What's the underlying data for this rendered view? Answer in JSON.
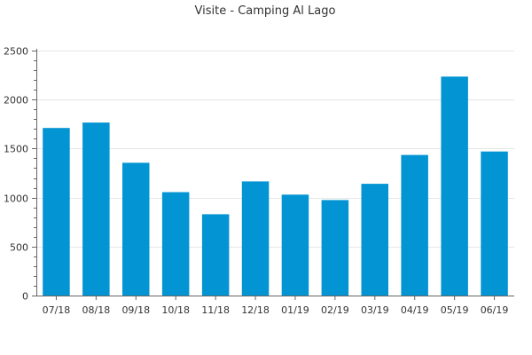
{
  "chart_data": {
    "type": "bar",
    "title": "Visite - Camping Al Lago",
    "xlabel": "",
    "ylabel": "",
    "categories": [
      "07/18",
      "08/18",
      "09/18",
      "10/18",
      "11/18",
      "12/18",
      "01/19",
      "02/19",
      "03/19",
      "04/19",
      "05/19",
      "06/19"
    ],
    "values": [
      1710,
      1765,
      1355,
      1055,
      830,
      1165,
      1030,
      975,
      1140,
      1435,
      2235,
      1470
    ],
    "ylim": [
      0,
      2500
    ],
    "yticks": [
      0,
      500,
      1000,
      1500,
      2000,
      2500
    ],
    "bar_color": "#0394d3",
    "grid": true,
    "legend": "none"
  }
}
